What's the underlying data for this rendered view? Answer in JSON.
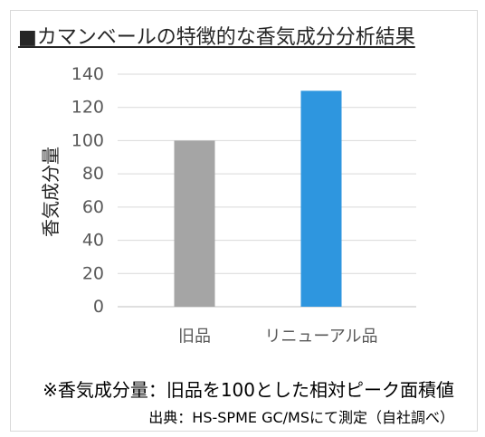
{
  "chart_data": {
    "type": "bar",
    "title": "■カマンベールの特徴的な香気成分分析結果",
    "categories": [
      "旧品",
      "リニューアル品"
    ],
    "values": [
      100,
      130
    ],
    "xlabel": "",
    "ylabel": "香気成分量",
    "ylim": [
      0,
      140
    ],
    "yticks": [
      0,
      20,
      40,
      60,
      80,
      100,
      120,
      140
    ],
    "grid": true,
    "bar_colors": [
      "#a5a5a5",
      "#2e96df"
    ]
  },
  "notes": {
    "definition": "※香気成分量：旧品を100とした相対ピーク面積値",
    "source": "出典：HS-SPME GC/MSにて測定（自社調べ）"
  }
}
